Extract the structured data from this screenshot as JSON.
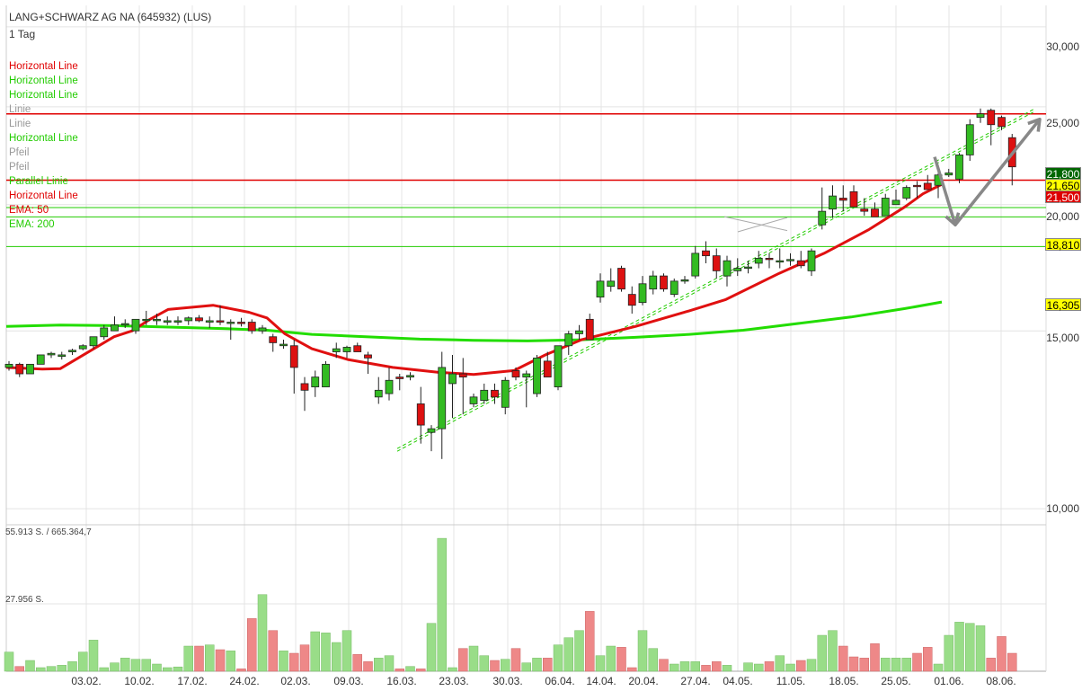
{
  "header": {
    "title": "LANG+SCHWARZ AG NA (645932) (LUS)",
    "interval": "1 Tag"
  },
  "legend": [
    {
      "label": "Horizontal Line",
      "color": "#e00000"
    },
    {
      "label": "Horizontal Line",
      "color": "#22cc00"
    },
    {
      "label": "Horizontal Line",
      "color": "#22cc00"
    },
    {
      "label": "Linie",
      "color": "#999999"
    },
    {
      "label": "Linie",
      "color": "#999999"
    },
    {
      "label": "Horizontal Line",
      "color": "#22cc00"
    },
    {
      "label": "Pfeil",
      "color": "#999999"
    },
    {
      "label": "Pfeil",
      "color": "#999999"
    },
    {
      "label": "Parallel Linie",
      "color": "#22cc00"
    },
    {
      "label": "Horizontal Line",
      "color": "#e00000"
    },
    {
      "label": "EMA: 50",
      "color": "#e00000"
    },
    {
      "label": "EMA: 200",
      "color": "#22cc00"
    }
  ],
  "price_axis_labels": [
    "30,000",
    "25,000",
    "20,000",
    "15,000",
    "10,000"
  ],
  "markers": [
    {
      "value": "21,800",
      "bg": "#006600",
      "fg": "#ffffff"
    },
    {
      "value": "21,650",
      "bg": "#ffff00",
      "fg": "#000000"
    },
    {
      "value": "21,500",
      "bg": "#dd0000",
      "fg": "#ffffff"
    },
    {
      "value": "18,810",
      "bg": "#ffff00",
      "fg": "#000000"
    },
    {
      "value": "16,305",
      "bg": "#ffff00",
      "fg": "#000000"
    }
  ],
  "volume_labels": [
    "55.913 S. / 665.364,7",
    "27.956 S."
  ],
  "date_labels": [
    "03.02.",
    "10.02.",
    "17.02.",
    "24.02.",
    "02.03.",
    "09.03.",
    "16.03.",
    "23.03.",
    "30.03.",
    "06.04.",
    "14.04.",
    "20.04.",
    "27.04.",
    "04.05.",
    "11.05.",
    "18.05.",
    "25.05.",
    "01.06.",
    "08.06."
  ],
  "colors": {
    "up": "#33bb22",
    "down": "#dd1111",
    "vol_up": "#99dd88",
    "vol_down": "#ee8888",
    "grid": "#e4e4e4"
  },
  "chart_data": {
    "type": "candlestick",
    "title": "LANG+SCHWARZ AG NA (645932) (LUS)",
    "y_scale": "log",
    "ylim": [
      9700,
      31500
    ],
    "x_ticks": [
      "03.02.",
      "10.02.",
      "17.02.",
      "24.02.",
      "02.03.",
      "09.03.",
      "16.03.",
      "23.03.",
      "30.03.",
      "06.04.",
      "14.04.",
      "20.04.",
      "27.04.",
      "04.05.",
      "11.05.",
      "18.05.",
      "25.05.",
      "01.06.",
      "08.06."
    ],
    "ohlc": [
      [
        13800,
        14000,
        13700,
        13900
      ],
      [
        13900,
        13950,
        13500,
        13600
      ],
      [
        13600,
        13900,
        13600,
        13900
      ],
      [
        13900,
        14200,
        13900,
        14200
      ],
      [
        14200,
        14300,
        14100,
        14250
      ],
      [
        14150,
        14300,
        14050,
        14200
      ],
      [
        14300,
        14400,
        14200,
        14350
      ],
      [
        14400,
        14550,
        14350,
        14500
      ],
      [
        14500,
        14800,
        14400,
        14800
      ],
      [
        14800,
        15200,
        14700,
        15100
      ],
      [
        15000,
        15500,
        15000,
        15200
      ],
      [
        15200,
        15400,
        15100,
        15250
      ],
      [
        15000,
        15400,
        14900,
        15400
      ],
      [
        15400,
        15700,
        15200,
        15400
      ],
      [
        15350,
        15600,
        15200,
        15400
      ],
      [
        15300,
        15500,
        15200,
        15350
      ],
      [
        15300,
        15500,
        15200,
        15350
      ],
      [
        15350,
        15500,
        15200,
        15450
      ],
      [
        15450,
        15550,
        15300,
        15350
      ],
      [
        15300,
        15500,
        15100,
        15350
      ],
      [
        15350,
        15900,
        15200,
        15300
      ],
      [
        15300,
        15400,
        14700,
        15300
      ],
      [
        15300,
        15450,
        15150,
        15250
      ],
      [
        15300,
        15400,
        14900,
        15000
      ],
      [
        15000,
        15200,
        14900,
        15100
      ],
      [
        14800,
        14900,
        14300,
        14600
      ],
      [
        14500,
        14700,
        14400,
        14550
      ],
      [
        14500,
        14700,
        13000,
        13800
      ],
      [
        13300,
        13500,
        12500,
        13100
      ],
      [
        13200,
        13700,
        12900,
        13500
      ],
      [
        13200,
        14000,
        13200,
        13900
      ],
      [
        14300,
        14600,
        14100,
        14400
      ],
      [
        14300,
        14500,
        14100,
        14450
      ],
      [
        14500,
        14600,
        14300,
        14300
      ],
      [
        14200,
        14300,
        13600,
        14100
      ],
      [
        12900,
        13500,
        12700,
        13100
      ],
      [
        13000,
        13800,
        12800,
        13400
      ],
      [
        13500,
        13600,
        13100,
        13450
      ],
      [
        13500,
        13650,
        13400,
        13550
      ],
      [
        12700,
        13200,
        11600,
        12100
      ],
      [
        11900,
        12100,
        11400,
        12000
      ],
      [
        12000,
        14300,
        11200,
        13800
      ],
      [
        13300,
        14200,
        12300,
        13600
      ],
      [
        13600,
        14100,
        12400,
        13500
      ],
      [
        12700,
        13000,
        12600,
        12900
      ],
      [
        12800,
        13300,
        12700,
        13100
      ],
      [
        13100,
        13300,
        12700,
        12900
      ],
      [
        12600,
        13500,
        12400,
        13400
      ],
      [
        13700,
        13800,
        13400,
        13500
      ],
      [
        13500,
        13700,
        12600,
        13600
      ],
      [
        13000,
        14200,
        12900,
        14100
      ],
      [
        14000,
        14300,
        13500,
        13500
      ],
      [
        13200,
        14500,
        13100,
        14500
      ],
      [
        14500,
        15000,
        14200,
        14900
      ],
      [
        14900,
        15200,
        14700,
        15000
      ],
      [
        15400,
        15600,
        14800,
        14700
      ],
      [
        16200,
        17100,
        16000,
        16800
      ],
      [
        16600,
        17300,
        16400,
        16800
      ],
      [
        17300,
        17400,
        16400,
        16500
      ],
      [
        16300,
        16600,
        15600,
        15900
      ],
      [
        16000,
        17000,
        15900,
        16700
      ],
      [
        16500,
        17200,
        16300,
        17000
      ],
      [
        17000,
        17100,
        16400,
        16500
      ],
      [
        16300,
        16900,
        16200,
        16800
      ],
      [
        16800,
        17000,
        16700,
        16850
      ],
      [
        17000,
        18200,
        16900,
        17900
      ],
      [
        18000,
        18400,
        17500,
        17800
      ],
      [
        17800,
        18100,
        16900,
        17200
      ],
      [
        17000,
        17800,
        16600,
        17600
      ],
      [
        17200,
        17700,
        17000,
        17300
      ],
      [
        17300,
        17600,
        17100,
        17350
      ],
      [
        17500,
        18000,
        17300,
        17700
      ],
      [
        17700,
        17900,
        17300,
        17650
      ],
      [
        17600,
        18100,
        17300,
        17600
      ],
      [
        17600,
        17900,
        17400,
        17650
      ],
      [
        17600,
        18000,
        17300,
        17400
      ],
      [
        17200,
        18100,
        17000,
        18000
      ],
      [
        19100,
        20800,
        18900,
        19700
      ],
      [
        19800,
        20900,
        19400,
        20400
      ],
      [
        20300,
        20900,
        19700,
        20200
      ],
      [
        20600,
        20900,
        19900,
        19900
      ],
      [
        19800,
        20300,
        19500,
        19700
      ],
      [
        19800,
        20100,
        19500,
        19450
      ],
      [
        19500,
        20500,
        19500,
        20300
      ],
      [
        20000,
        20700,
        20000,
        20200
      ],
      [
        20300,
        20900,
        20200,
        20800
      ],
      [
        20900,
        21100,
        20300,
        20850
      ],
      [
        21000,
        21400,
        20800,
        20700
      ],
      [
        20900,
        21600,
        20300,
        21400
      ],
      [
        21400,
        21700,
        21300,
        21500
      ],
      [
        21200,
        22500,
        21000,
        22400
      ],
      [
        22400,
        24300,
        22100,
        24000
      ],
      [
        24400,
        24900,
        24100,
        24600
      ],
      [
        24800,
        24900,
        22900,
        24000
      ],
      [
        24400,
        24500,
        23700,
        23900
      ],
      [
        23300,
        23500,
        20900,
        21800
      ]
    ],
    "volume": [
      8000,
      2000,
      4500,
      1500,
      2000,
      2500,
      4000,
      8000,
      13000,
      1500,
      3500,
      5500,
      5000,
      5000,
      3000,
      1500,
      1800,
      10500,
      10500,
      11000,
      9000,
      8500,
      1000,
      22000,
      32000,
      17000,
      8500,
      7500,
      11000,
      16500,
      16000,
      12000,
      17000,
      7000,
      4000,
      5500,
      6500,
      1000,
      2000,
      1000,
      20000,
      55500,
      1500,
      9500,
      10500,
      6500,
      4500,
      5000,
      9500,
      3500,
      5500,
      5500,
      11000,
      14000,
      17000,
      25000,
      6500,
      10500,
      10000,
      1500,
      17000,
      9500,
      5000,
      3000,
      4000,
      4000,
      2500,
      4000,
      2500,
      0,
      3500,
      3000,
      4000,
      6500,
      3000,
      4500,
      5000,
      15000,
      17000,
      10500,
      6000,
      5500,
      11500,
      5500,
      5500,
      5500,
      7500,
      10000,
      3000,
      15000,
      20500,
      20000,
      19000,
      5500,
      14500,
      7500
    ],
    "ema50": [
      [
        0,
        13800
      ],
      [
        40,
        13750
      ],
      [
        60,
        13760
      ],
      [
        80,
        14100
      ],
      [
        120,
        14800
      ],
      [
        140,
        15000
      ],
      [
        160,
        15400
      ],
      [
        180,
        15750
      ],
      [
        230,
        15900
      ],
      [
        270,
        15650
      ],
      [
        290,
        15450
      ],
      [
        310,
        14900
      ],
      [
        340,
        14400
      ],
      [
        380,
        14050
      ],
      [
        430,
        13800
      ],
      [
        480,
        13650
      ],
      [
        520,
        13580
      ],
      [
        565,
        13700
      ],
      [
        600,
        14200
      ],
      [
        640,
        14700
      ],
      [
        700,
        15150
      ],
      [
        760,
        15700
      ],
      [
        800,
        16100
      ],
      [
        860,
        17100
      ],
      [
        910,
        17900
      ],
      [
        960,
        18900
      ],
      [
        1000,
        19900
      ],
      [
        1020,
        20500
      ],
      [
        1041,
        20950
      ]
    ],
    "ema200": [
      [
        0,
        15150
      ],
      [
        60,
        15200
      ],
      [
        120,
        15180
      ],
      [
        180,
        15130
      ],
      [
        240,
        15080
      ],
      [
        290,
        15020
      ],
      [
        340,
        14880
      ],
      [
        400,
        14800
      ],
      [
        460,
        14720
      ],
      [
        520,
        14680
      ],
      [
        580,
        14660
      ],
      [
        640,
        14700
      ],
      [
        700,
        14780
      ],
      [
        760,
        14880
      ],
      [
        820,
        15020
      ],
      [
        880,
        15250
      ],
      [
        940,
        15480
      ],
      [
        1000,
        15780
      ],
      [
        1041,
        16020
      ]
    ],
    "hlines": [
      {
        "value": 24600,
        "color": "#e00000"
      },
      {
        "value": 21150,
        "color": "#e00000"
      },
      {
        "value": 19870,
        "color": "#22cc00"
      },
      {
        "value": 19450,
        "color": "#22cc00"
      },
      {
        "value": 18180,
        "color": "#22cc00"
      }
    ],
    "trend_lines": [
      {
        "from": [
          442,
          11400
        ],
        "to": [
          1150,
          24700
        ],
        "color": "#22cc00",
        "dash": true,
        "offset": 3
      },
      {
        "from": [
          806,
          19460
        ],
        "to": [
          876,
          18850
        ],
        "color": "#aaaaaa",
        "dash": false,
        "offset": 0
      },
      {
        "from": [
          821,
          18800
        ],
        "to": [
          876,
          19420
        ],
        "color": "#aaaaaa",
        "dash": false,
        "offset": 0
      }
    ],
    "arrows": [
      {
        "points": [
          [
            1040,
            22300
          ],
          [
            1063,
            19100
          ],
          [
            1157,
            24300
          ]
        ],
        "color": "#888888"
      }
    ]
  }
}
